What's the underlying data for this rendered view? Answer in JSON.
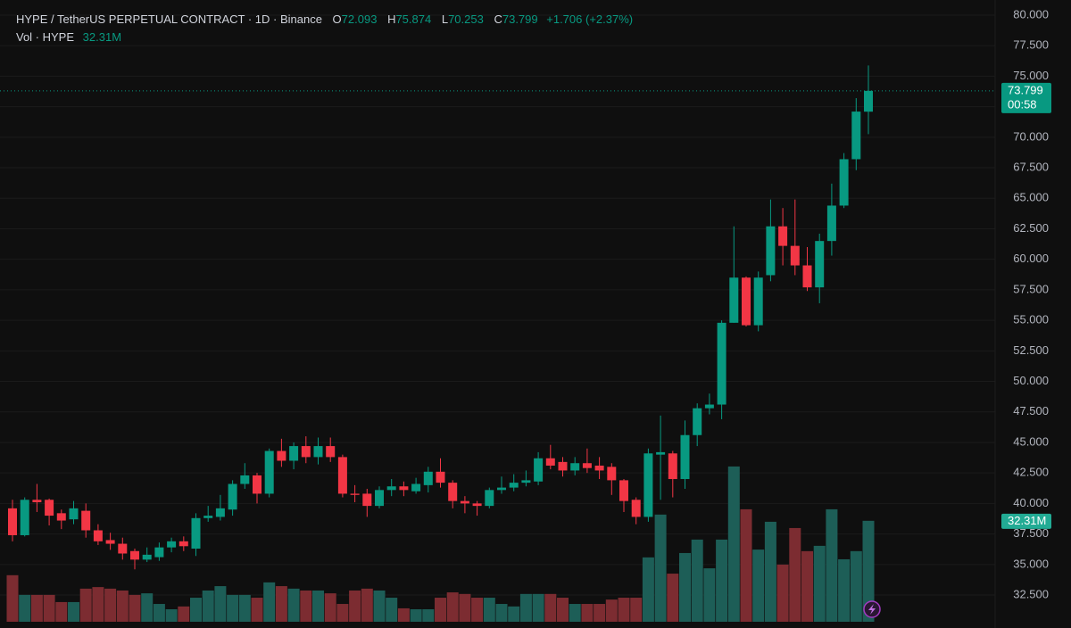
{
  "header": {
    "title": "HYPE / TetherUS PERPETUAL CONTRACT · 1D · Binance",
    "labels": [
      "O",
      "H",
      "L",
      "C"
    ],
    "change": "+1.706 (+2.37%)",
    "volume_title": "Vol · HYPE",
    "countdown": "00:58"
  },
  "chart_data": {
    "type": "candlestick",
    "open": [
      39.6,
      37.4,
      40.3,
      40.3,
      39.2,
      38.7,
      39.4,
      37.8,
      37.0,
      36.7,
      36.1,
      35.4,
      35.6,
      36.4,
      36.9,
      36.3,
      38.8,
      38.9,
      39.5,
      41.6,
      42.3,
      40.8,
      44.3,
      43.5,
      44.7,
      43.8,
      44.7,
      43.8,
      40.8,
      40.8,
      39.8,
      41.1,
      41.4,
      41.0,
      41.5,
      42.6,
      41.7,
      40.2,
      40.0,
      39.8,
      41.1,
      41.3,
      41.7,
      41.8,
      43.7,
      43.4,
      42.7,
      43.3,
      43.1,
      43.0,
      41.9,
      40.3,
      38.9,
      44.0,
      44.1,
      42.0,
      45.6,
      47.8,
      48.1,
      54.8,
      58.5,
      54.6,
      58.7,
      62.7,
      61.1,
      59.5,
      57.7,
      61.5,
      64.4,
      68.2,
      72.093
    ],
    "high": [
      40.3,
      40.5,
      41.6,
      40.4,
      39.5,
      40.2,
      40.0,
      38.3,
      37.6,
      37.2,
      36.3,
      36.4,
      36.8,
      37.2,
      37.3,
      39.2,
      39.8,
      40.7,
      41.9,
      43.3,
      42.5,
      44.5,
      45.3,
      45.0,
      45.5,
      45.4,
      45.4,
      44.0,
      41.5,
      41.2,
      41.4,
      42.0,
      41.8,
      42.1,
      43.0,
      43.7,
      41.9,
      40.6,
      40.2,
      41.3,
      42.2,
      42.4,
      42.7,
      44.2,
      44.8,
      43.8,
      43.8,
      44.5,
      43.8,
      43.3,
      42.0,
      40.5,
      44.5,
      47.2,
      44.3,
      46.8,
      48.2,
      49.0,
      55.0,
      62.7,
      58.6,
      59.0,
      64.9,
      64.2,
      64.9,
      61.0,
      62.1,
      66.2,
      68.7,
      73.2,
      75.874
    ],
    "low": [
      36.9,
      37.3,
      39.3,
      38.2,
      37.9,
      38.3,
      37.2,
      36.6,
      36.2,
      35.4,
      34.6,
      35.2,
      35.3,
      36.0,
      36.1,
      35.7,
      38.5,
      38.6,
      39.0,
      41.2,
      40.0,
      40.5,
      43.0,
      42.8,
      43.3,
      43.2,
      43.4,
      40.5,
      40.1,
      38.9,
      39.6,
      40.6,
      40.6,
      40.8,
      40.9,
      41.3,
      39.6,
      39.2,
      39.0,
      39.6,
      40.8,
      41.0,
      41.4,
      41.5,
      42.8,
      42.2,
      42.3,
      42.5,
      42.0,
      40.7,
      39.3,
      38.3,
      38.5,
      40.3,
      40.5,
      41.2,
      44.7,
      47.3,
      46.9,
      54.8,
      54.5,
      54.1,
      58.2,
      59.5,
      58.7,
      57.4,
      56.4,
      60.3,
      64.2,
      67.3,
      70.253
    ],
    "close": [
      37.4,
      40.3,
      40.1,
      39.0,
      38.6,
      39.6,
      37.8,
      36.9,
      36.7,
      35.9,
      35.4,
      35.8,
      36.4,
      36.9,
      36.5,
      38.8,
      39.0,
      39.6,
      41.6,
      42.3,
      40.8,
      44.3,
      43.5,
      44.7,
      43.8,
      44.7,
      43.8,
      40.8,
      40.7,
      39.8,
      41.1,
      41.4,
      41.1,
      41.6,
      42.6,
      41.7,
      40.2,
      40.0,
      39.8,
      41.1,
      41.3,
      41.7,
      41.9,
      43.7,
      43.1,
      42.7,
      43.3,
      42.9,
      42.7,
      41.9,
      40.2,
      38.9,
      44.1,
      44.2,
      42.0,
      45.6,
      47.8,
      48.1,
      54.8,
      58.5,
      54.6,
      58.5,
      62.7,
      61.1,
      59.5,
      57.7,
      61.5,
      64.4,
      68.2,
      72.1,
      73.799
    ],
    "volume": {
      "values": [
        14.9,
        8.6,
        8.6,
        8.6,
        6.3,
        6.3,
        10.6,
        11.1,
        10.6,
        10.0,
        8.6,
        9.1,
        5.7,
        4.0,
        4.9,
        7.7,
        10.0,
        11.4,
        8.6,
        8.6,
        7.7,
        12.6,
        11.4,
        10.6,
        10.0,
        10.0,
        9.1,
        5.7,
        10.0,
        10.6,
        10.0,
        7.7,
        4.3,
        4.0,
        4.0,
        7.7,
        9.4,
        8.9,
        7.7,
        7.7,
        5.7,
        4.9,
        8.9,
        8.9,
        8.9,
        7.7,
        5.7,
        5.7,
        5.7,
        7.1,
        7.7,
        7.7,
        20.6,
        34.3,
        15.4,
        22.0,
        26.3,
        17.1,
        26.3,
        49.7,
        36.0,
        23.1,
        32.0,
        18.3,
        30.0,
        22.6,
        24.3,
        36.0,
        20.0,
        22.6,
        32.31
      ],
      "value_labels": [
        null,
        null,
        null,
        null,
        null,
        null,
        null,
        null,
        null,
        null,
        null,
        null,
        null,
        null,
        null,
        null,
        null,
        null,
        null,
        null,
        null,
        null,
        null,
        null,
        null,
        null,
        null,
        null,
        null,
        null,
        null,
        null,
        null,
        null,
        null,
        null,
        null,
        null,
        null,
        null,
        null,
        null,
        null,
        null,
        null,
        null,
        null,
        null,
        null,
        null,
        null,
        null,
        null,
        null,
        null,
        null,
        null,
        null,
        null,
        null,
        null,
        null,
        null,
        null,
        null,
        null,
        null,
        null,
        null,
        null,
        "32.31M"
      ],
      "ylim": [
        0,
        199
      ]
    },
    "ylim": [
      30.31,
      81.24
    ],
    "yticks": [
      {
        "value": 80,
        "label": "80.000"
      },
      {
        "value": 77.5,
        "label": "77.500"
      },
      {
        "value": 75,
        "label": "75.000"
      },
      {
        "value": 72.5,
        "label": "72.500"
      },
      {
        "value": 70,
        "label": "70.000"
      },
      {
        "value": 67.5,
        "label": "67.500"
      },
      {
        "value": 65,
        "label": "65.000"
      },
      {
        "value": 62.5,
        "label": "62.500"
      },
      {
        "value": 60,
        "label": "60.000"
      },
      {
        "value": 57.5,
        "label": "57.500"
      },
      {
        "value": 55,
        "label": "55.000"
      },
      {
        "value": 52.5,
        "label": "52.500"
      },
      {
        "value": 50,
        "label": "50.000"
      },
      {
        "value": 47.5,
        "label": "47.500"
      },
      {
        "value": 45,
        "label": "45.000"
      },
      {
        "value": 42.5,
        "label": "42.500"
      },
      {
        "value": 40,
        "label": "40.000"
      },
      {
        "value": 37.5,
        "label": "37.500"
      },
      {
        "value": 35,
        "label": "35.000"
      },
      {
        "value": 32.5,
        "label": "32.500"
      }
    ],
    "grid": true,
    "up_color": "#089981",
    "down_color": "#f23645",
    "volume_up_color": "#1d5e57",
    "volume_down_color": "#7c2c31"
  }
}
